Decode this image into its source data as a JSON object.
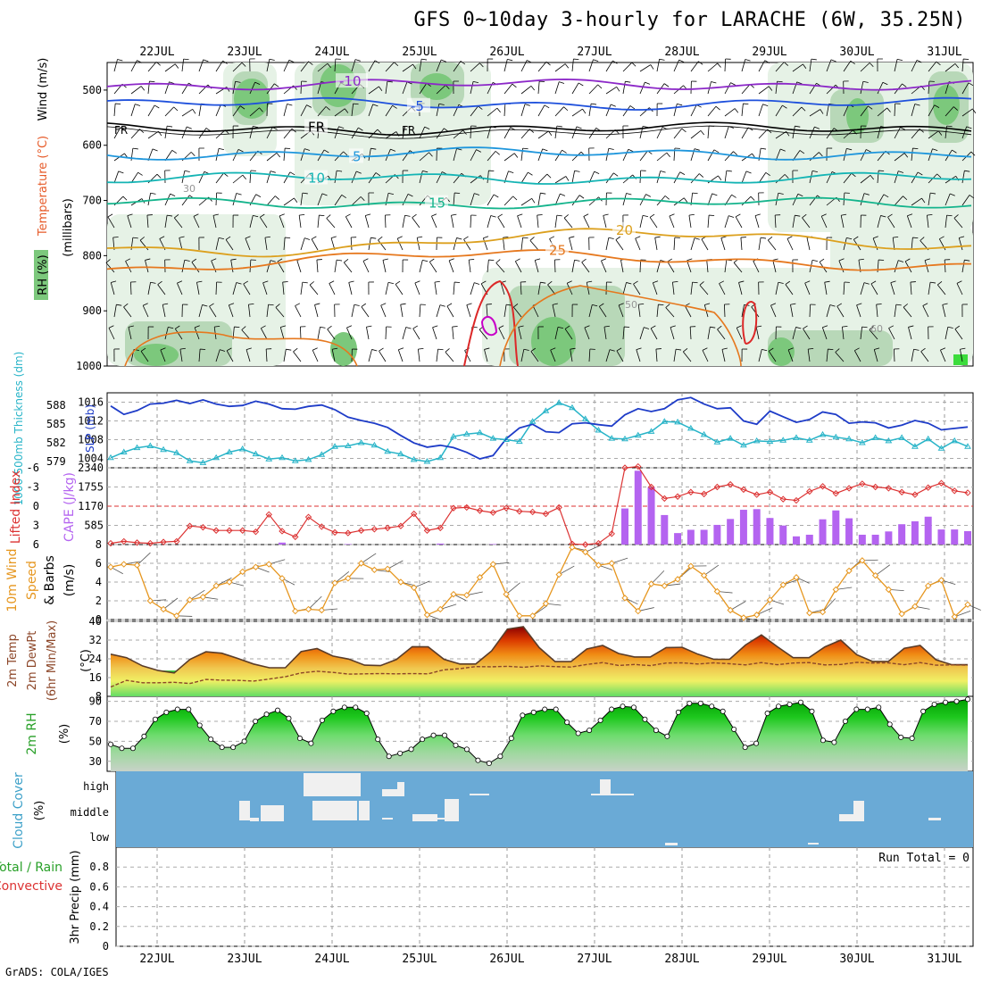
{
  "header": {
    "title": "GFS 0~10day 3-hourly for LARACHE (6W, 35.25N)",
    "footer": "GrADS: COLA/IGES"
  },
  "colors": {
    "wind_barb": "#000000",
    "rh_light": "#e6f2e6",
    "rh_mid": "#b8d8b8",
    "rh_dark": "#7cc87c",
    "rh_bright": "#3cdc3c",
    "slp_line": "#1e3cc8",
    "thickness_line": "#28b4c8",
    "lifted_index": "#dc3232",
    "cape_bar": "#b464f0",
    "wind_speed": "#e6961e",
    "dewpt_line": "#8c4628",
    "cloud_bg": "#6aaad6",
    "cloud_fill": "#f0f0f0"
  },
  "chart_data": [
    {
      "id": "upper-air",
      "type": "contour",
      "title": "",
      "ylabel_parts": [
        "RH (%)",
        "Temperature (°C)",
        "Wind (m/s)"
      ],
      "ylabel_unit": "(millibars)",
      "y_ticks": [
        "500",
        "600",
        "700",
        "800",
        "900",
        "1000"
      ],
      "ylim": [
        450,
        1000
      ],
      "x_ticks": [
        "22JUL",
        "23JUL",
        "24JUL",
        "25JUL",
        "26JUL",
        "27JUL",
        "28JUL",
        "29JUL",
        "30JUL",
        "31JUL"
      ],
      "temperature_isotherms": [
        {
          "label": "-10",
          "pressure": 490,
          "color": "#8c28c8"
        },
        {
          "label": "-5",
          "pressure": 525,
          "color": "#1e50dc"
        },
        {
          "label": "FR",
          "pressure": 570,
          "color": "#000000"
        },
        {
          "label": "5",
          "pressure": 615,
          "color": "#1e96dc"
        },
        {
          "label": "10",
          "pressure": 660,
          "color": "#14b4b4"
        },
        {
          "label": "15",
          "pressure": 705,
          "color": "#14b48c"
        },
        {
          "label": "20",
          "pressure": 775,
          "color": "#dca01e"
        },
        {
          "label": "25",
          "pressure": 810,
          "color": "#e6781e"
        }
      ],
      "rh_labels": [
        "30",
        "50",
        "60"
      ]
    },
    {
      "id": "slp-thickness",
      "type": "line",
      "ylabel_left": "1000-500mb Thickness (dm)",
      "ylabel_right": "SLP (mb)",
      "left_ticks": [
        "579",
        "582",
        "585",
        "588"
      ],
      "right_ticks": [
        "1004",
        "1008",
        "1012",
        "1016"
      ],
      "series": [
        {
          "name": "SLP (mb)",
          "values": [
            1015.2,
            1013.4,
            1014.2,
            1015.6,
            1015.8,
            1016.4,
            1015.7,
            1016.5,
            1015.6,
            1015.1,
            1015.3,
            1016.2,
            1015.6,
            1014.6,
            1014.5,
            1015.1,
            1015.4,
            1014.4,
            1012.8,
            1012.1,
            1011.5,
            1010.6,
            1008.9,
            1007.3,
            1006.4,
            1006.8,
            1006.3,
            1005.3,
            1003.9,
            1004.6,
            1008.2,
            1010.5,
            1011.3,
            1009.7,
            1009.5,
            1011.4,
            1011.6,
            1011.2,
            1010.9,
            1013.3,
            1014.6,
            1014.0,
            1014.6,
            1016.5,
            1017.0,
            1015.6,
            1014.6,
            1014.8,
            1012.0,
            1011.3,
            1014.1,
            1012.9,
            1011.7,
            1012.3,
            1013.9,
            1013.4,
            1011.5,
            1011.8,
            1011.6,
            1010.5,
            1011.1,
            1012.1,
            1011.5,
            1010.1,
            1010.4,
            1010.7
          ]
        },
        {
          "name": "Thickness (dm)",
          "values": [
            579.6,
            580.5,
            581.2,
            581.5,
            580.9,
            580.4,
            579.1,
            578.8,
            579.6,
            580.5,
            581.0,
            580.2,
            579.4,
            579.6,
            579.1,
            579.3,
            580.1,
            581.4,
            581.5,
            582.0,
            581.6,
            580.6,
            580.2,
            579.3,
            579.0,
            579.6,
            583.0,
            583.4,
            583.6,
            582.7,
            582.5,
            582.2,
            585.4,
            587.1,
            588.4,
            587.6,
            585.8,
            584.0,
            582.7,
            582.6,
            583.2,
            583.8,
            585.4,
            585.3,
            584.3,
            583.3,
            582.1,
            582.7,
            581.6,
            582.3,
            582.2,
            582.4,
            582.8,
            582.4,
            583.3,
            582.9,
            582.6,
            582.0,
            582.8,
            582.3,
            582.8,
            581.4,
            582.6,
            581.1,
            582.3,
            581.4
          ]
        }
      ],
      "left_ylim": [
        578,
        590
      ],
      "right_ylim": [
        1002,
        1018
      ]
    },
    {
      "id": "li-cape",
      "type": "bar",
      "ylabel_left": "Lifted Index",
      "ylabel_right": "CAPE (J/kg)",
      "left_ticks": [
        "-6",
        "-3",
        "0",
        "3",
        "6"
      ],
      "right_ticks": [
        "585",
        "1170",
        "1755",
        "2340"
      ],
      "series": [
        {
          "name": "Lifted Index",
          "values": [
            5.8,
            5.5,
            5.7,
            5.8,
            5.6,
            5.5,
            3.1,
            3.3,
            3.8,
            3.8,
            3.8,
            4.0,
            1.3,
            3.9,
            4.8,
            1.7,
            3.2,
            4.1,
            4.2,
            3.8,
            3.6,
            3.4,
            3.1,
            1.2,
            3.8,
            3.4,
            0.3,
            0.2,
            0.7,
            1.0,
            0.3,
            0.8,
            0.9,
            1.2,
            0.2,
            5.9,
            6.0,
            5.8,
            4.3,
            -6.0,
            -6.2,
            -3.0,
            -1.2,
            -1.5,
            -2.2,
            -1.9,
            -3.0,
            -3.4,
            -2.6,
            -1.8,
            -2.2,
            -1.1,
            -0.9,
            -2.3,
            -3.1,
            -2.0,
            -2.8,
            -3.5,
            -3.0,
            -2.8,
            -2.2,
            -1.8,
            -2.9,
            -3.6,
            -2.4,
            -2.1
          ]
        },
        {
          "name": "CAPE (J/kg)",
          "values": [
            0,
            0,
            0,
            0,
            0,
            0,
            0,
            0,
            0,
            0,
            0,
            0,
            0,
            60,
            0,
            0,
            0,
            0,
            15,
            0,
            0,
            0,
            0,
            0,
            0,
            30,
            0,
            0,
            0,
            15,
            0,
            0,
            0,
            0,
            0,
            0,
            0,
            0,
            0,
            1100,
            2250,
            1750,
            900,
            350,
            450,
            450,
            600,
            780,
            1060,
            1080,
            810,
            580,
            250,
            300,
            770,
            1040,
            800,
            300,
            300,
            400,
            620,
            710,
            850,
            460,
            460,
            410
          ]
        }
      ],
      "left_ylim": [
        6,
        -6
      ],
      "right_ylim": [
        0,
        2340
      ]
    },
    {
      "id": "wind",
      "type": "line",
      "ylabel": "10m Wind Speed & Barbs (m/s)",
      "ticks": [
        "0",
        "2",
        "4",
        "6",
        "8"
      ],
      "series": [
        {
          "name": "10m Wind Speed",
          "values": [
            5.6,
            5.9,
            5.8,
            2.0,
            1.1,
            0.4,
            2.1,
            2.4,
            3.6,
            4.0,
            5.1,
            5.6,
            5.9,
            4.4,
            0.9,
            1.1,
            1.0,
            3.9,
            4.4,
            6.0,
            5.3,
            5.4,
            4.0,
            3.4,
            0.5,
            1.1,
            2.7,
            2.6,
            4.5,
            5.9,
            2.7,
            0.4,
            0.4,
            1.7,
            4.8,
            7.7,
            7.2,
            5.8,
            6.0,
            2.3,
            0.9,
            3.8,
            3.6,
            4.3,
            5.7,
            4.7,
            3.0,
            1.0,
            0.2,
            0.5,
            2.1,
            3.7,
            4.5,
            0.7,
            0.8,
            3.2,
            5.2,
            6.3,
            4.7,
            3.2,
            0.6,
            1.4,
            3.6,
            4.2,
            0.3,
            1.6
          ]
        }
      ],
      "ylim": [
        0,
        8
      ]
    },
    {
      "id": "temp",
      "type": "area",
      "ylabel": "2m Temp 2m DewPt (6hr Min/Max) (°C)",
      "ticks": [
        "8",
        "16",
        "24",
        "32",
        "40"
      ],
      "series": [
        {
          "name": "2m Temp",
          "values": [
            26.0,
            24.5,
            21.0,
            19.0,
            18.0,
            23.8,
            27.0,
            26.4,
            24.2,
            21.8,
            20.2,
            20.2,
            27.1,
            28.4,
            25.2,
            23.9,
            21.3,
            21.1,
            23.7,
            29.2,
            29.1,
            23.8,
            21.8,
            21.8,
            27.4,
            36.7,
            37.7,
            28.8,
            22.8,
            22.8,
            28.2,
            29.7,
            26.3,
            24.8,
            24.8,
            28.8,
            28.9,
            26.0,
            23.8,
            23.8,
            29.9,
            34.2,
            29.2,
            24.5,
            24.5,
            29.1,
            32.0,
            25.8,
            22.9,
            22.9,
            28.5,
            29.7,
            23.6,
            21.5,
            21.5
          ]
        },
        {
          "name": "2m DewPt",
          "values": [
            12.0,
            14.8,
            13.8,
            13.8,
            14.0,
            13.5,
            15.2,
            14.9,
            14.8,
            14.5,
            15.4,
            16.4,
            18.0,
            18.7,
            18.2,
            17.5,
            17.6,
            17.7,
            17.6,
            17.7,
            17.6,
            19.3,
            19.8,
            20.7,
            20.6,
            20.8,
            20.4,
            21.0,
            20.7,
            20.5,
            21.6,
            22.4,
            21.2,
            21.6,
            21.1,
            22.2,
            22.3,
            21.8,
            22.3,
            21.9,
            21.4,
            22.4,
            21.5,
            22.2,
            22.4,
            21.4,
            21.6,
            22.5,
            22.2,
            22.3,
            21.5,
            22.4,
            21.3,
            21.4,
            21.3
          ]
        }
      ],
      "ylim": [
        8,
        40
      ]
    },
    {
      "id": "rh",
      "type": "area",
      "ylabel": "2m RH (%)",
      "ticks": [
        "30",
        "50",
        "70",
        "90"
      ],
      "series": [
        {
          "name": "2m RH",
          "values": [
            47,
            43,
            43,
            55,
            72,
            79,
            82,
            82,
            66,
            52,
            44,
            44,
            50,
            70,
            77,
            81,
            73,
            53,
            48,
            71,
            80,
            84,
            84,
            78,
            52,
            35,
            38,
            42,
            52,
            56,
            56,
            46,
            42,
            31,
            28,
            35,
            53,
            76,
            79,
            82,
            82,
            69,
            58,
            61,
            71,
            82,
            85,
            84,
            72,
            61,
            55,
            79,
            88,
            88,
            85,
            80,
            62,
            44,
            48,
            78,
            85,
            87,
            89,
            80,
            51,
            49,
            70,
            82,
            82,
            84,
            67,
            54,
            53,
            80,
            87,
            89,
            90,
            92
          ]
        }
      ],
      "ylim": [
        20,
        95
      ]
    },
    {
      "id": "cloud",
      "type": "bar",
      "ylabel": "Cloud Cover (%)",
      "levels": [
        "high",
        "middle",
        "low"
      ]
    },
    {
      "id": "precip",
      "type": "bar",
      "ylabel_left": "Total / Rain",
      "ylabel_conv": "Convective",
      "ylabel": "3hr Precip (mm)",
      "ticks": [
        "0",
        "0.2",
        "0.4",
        "0.6",
        "0.8"
      ],
      "run_total": "Run Total = 0",
      "ylim": [
        0,
        1
      ]
    }
  ]
}
